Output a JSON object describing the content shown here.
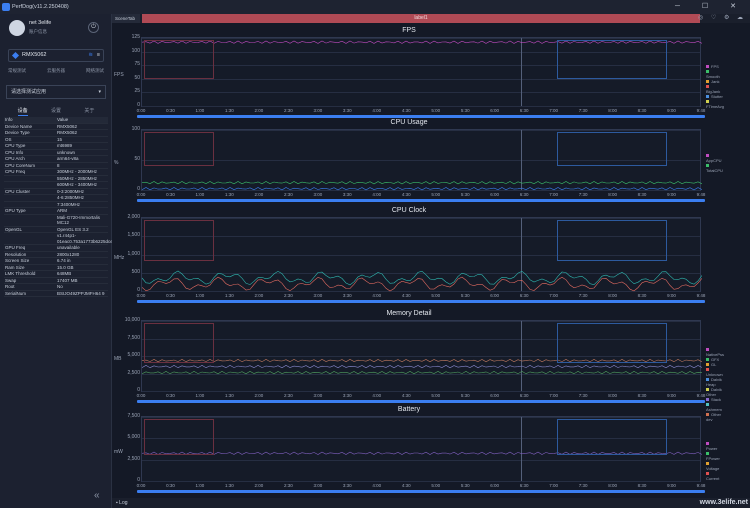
{
  "window": {
    "title": "PerfDog(v11.2.250408)"
  },
  "user": {
    "name": "net 3elife",
    "status": "账户信息"
  },
  "device": {
    "name": "RMX5062"
  },
  "modes": [
    "常规测试",
    "云服务器",
    "网络测试"
  ],
  "app_select": "请选择测试应用",
  "tabs": [
    "设备",
    "设置",
    "关于"
  ],
  "info_header": {
    "k": "Info",
    "v": "Value"
  },
  "info": [
    {
      "k": "Device Name",
      "v": "RMX5062"
    },
    {
      "k": "Device Type",
      "v": "RMX5062"
    },
    {
      "k": "OS",
      "v": "15"
    },
    {
      "k": "CPU Type",
      "v": "mt6989"
    },
    {
      "k": "CPU Info",
      "v": "unknown"
    },
    {
      "k": "CPU Arch",
      "v": "arm64-v8a"
    },
    {
      "k": "CPU CoreNum",
      "v": "8"
    },
    {
      "k": "CPU Freq",
      "v": "300MHz - 2000MHz"
    },
    {
      "k": "",
      "v": "550MHz - 2850MHz"
    },
    {
      "k": "",
      "v": "600MHz - 3400MHz"
    },
    {
      "k": "CPU Cluster",
      "v": "0-3:2000MHz"
    },
    {
      "k": "",
      "v": "4-6:2850MHz"
    },
    {
      "k": "",
      "v": "7:3400MHz"
    },
    {
      "k": "GPU Type",
      "v": "ARM"
    },
    {
      "k": "",
      "v": "Mali-G720-Immortalis MC12"
    },
    {
      "k": "OpenGL",
      "v": "OpenGL ES 3.2"
    },
    {
      "k": "",
      "v": "v1.r44p1-01eac0.753a1773b6225dce31b4bd662a0e2f0d"
    },
    {
      "k": "GPU Freq",
      "v": "unavailable"
    },
    {
      "k": "Resolution",
      "v": "2800x1280"
    },
    {
      "k": "Screen Size",
      "v": "6.74 in"
    },
    {
      "k": "Ram Size",
      "v": "15.0 GB"
    },
    {
      "k": "LMK Threshold",
      "v": "648MB"
    },
    {
      "k": "Swap",
      "v": "17407 MB"
    },
    {
      "k": "Root",
      "v": "No"
    },
    {
      "k": "SerialNum",
      "v": "BSIJO49ZPPJMFH64 9"
    }
  ],
  "topbar": {
    "scene_tab": "SceneTab",
    "label": "label1"
  },
  "xticks": [
    "0:00",
    "0:30",
    "1:00",
    "1:30",
    "2:00",
    "2:30",
    "3:00",
    "3:30",
    "4:00",
    "4:30",
    "5:00",
    "5:30",
    "6:00",
    "6:30",
    "7:00",
    "7:30",
    "8:00",
    "8:30",
    "9:00",
    "9:48"
  ],
  "panels": [
    {
      "title": "FPS",
      "ylabel": "FPS",
      "yticks": [
        "125",
        "100",
        "75",
        "50",
        "25",
        "0"
      ]
    },
    {
      "title": "CPU Usage",
      "ylabel": "%",
      "yticks": [
        "100",
        "50",
        "0"
      ]
    },
    {
      "title": "CPU Clock",
      "ylabel": "MHz",
      "yticks": [
        "2,000",
        "1,500",
        "1,000",
        "500",
        "0"
      ]
    },
    {
      "title": "Memory Detail",
      "ylabel": "MB",
      "yticks": [
        "10,000",
        "7,500",
        "5,000",
        "2,500",
        "0"
      ]
    },
    {
      "title": "Battery",
      "ylabel": "mW",
      "yticks": [
        "7,500",
        "5,000",
        "2,500",
        "0"
      ]
    }
  ],
  "legends": {
    "fps": [
      "FPS",
      "Smooth",
      "Jank",
      "BigJank",
      "Stutter",
      "FTimeAvg"
    ],
    "cpu": [
      "AppCPU",
      "TotalCPU"
    ],
    "mem": [
      "NativePss",
      "GFX",
      "GL",
      "Unknown",
      "Dalvik Heap",
      "Dalvik Other",
      "Stack",
      "Ashmem",
      "Other dev"
    ],
    "bat": [
      "Power",
      "FPower",
      "Voltage",
      "Current"
    ]
  },
  "bottom": {
    "log": "Log"
  },
  "watermark": "www.3elife.net",
  "colors": {
    "accent": "#3b7ef0",
    "label": "#b04a55"
  }
}
